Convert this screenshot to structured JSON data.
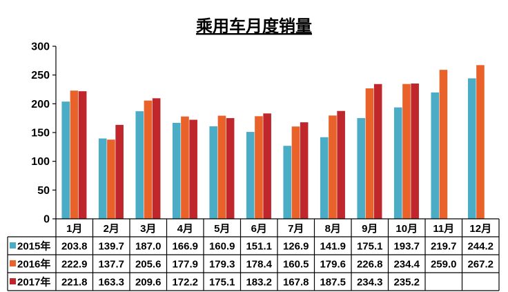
{
  "chart_data": {
    "type": "bar",
    "title": "乘用车月度销量",
    "categories": [
      "1月",
      "2月",
      "3月",
      "4月",
      "5月",
      "6月",
      "7月",
      "8月",
      "9月",
      "10月",
      "11月",
      "12月"
    ],
    "ylim": [
      0,
      300
    ],
    "yticks": [
      0,
      50,
      100,
      150,
      200,
      250,
      300
    ],
    "grid": false,
    "legend": "table-left",
    "series": [
      {
        "name": "2015年",
        "color": "#4bacc6",
        "values": [
          203.8,
          139.7,
          187.0,
          166.9,
          160.9,
          151.1,
          126.9,
          141.9,
          175.1,
          193.7,
          219.7,
          244.2
        ],
        "labels": [
          "203.8",
          "139.7",
          "187.0",
          "166.9",
          "160.9",
          "151.1",
          "126.9",
          "141.9",
          "175.1",
          "193.7",
          "219.7",
          "244.2"
        ]
      },
      {
        "name": "2016年",
        "color": "#e8622a",
        "values": [
          222.9,
          137.7,
          205.6,
          177.9,
          179.3,
          178.4,
          160.5,
          179.6,
          226.8,
          234.4,
          259.0,
          267.2
        ],
        "labels": [
          "222.9",
          "137.7",
          "205.6",
          "177.9",
          "179.3",
          "178.4",
          "160.5",
          "179.6",
          "226.8",
          "234.4",
          "259.0",
          "267.2"
        ]
      },
      {
        "name": "2017年",
        "color": "#c0272d",
        "values": [
          221.8,
          163.3,
          209.6,
          172.2,
          175.1,
          183.2,
          167.8,
          187.5,
          234.3,
          235.2,
          null,
          null
        ],
        "labels": [
          "221.8",
          "163.3",
          "209.6",
          "172.2",
          "175.1",
          "183.2",
          "167.8",
          "187.5",
          "234.3",
          "235.2",
          "",
          ""
        ]
      }
    ]
  }
}
